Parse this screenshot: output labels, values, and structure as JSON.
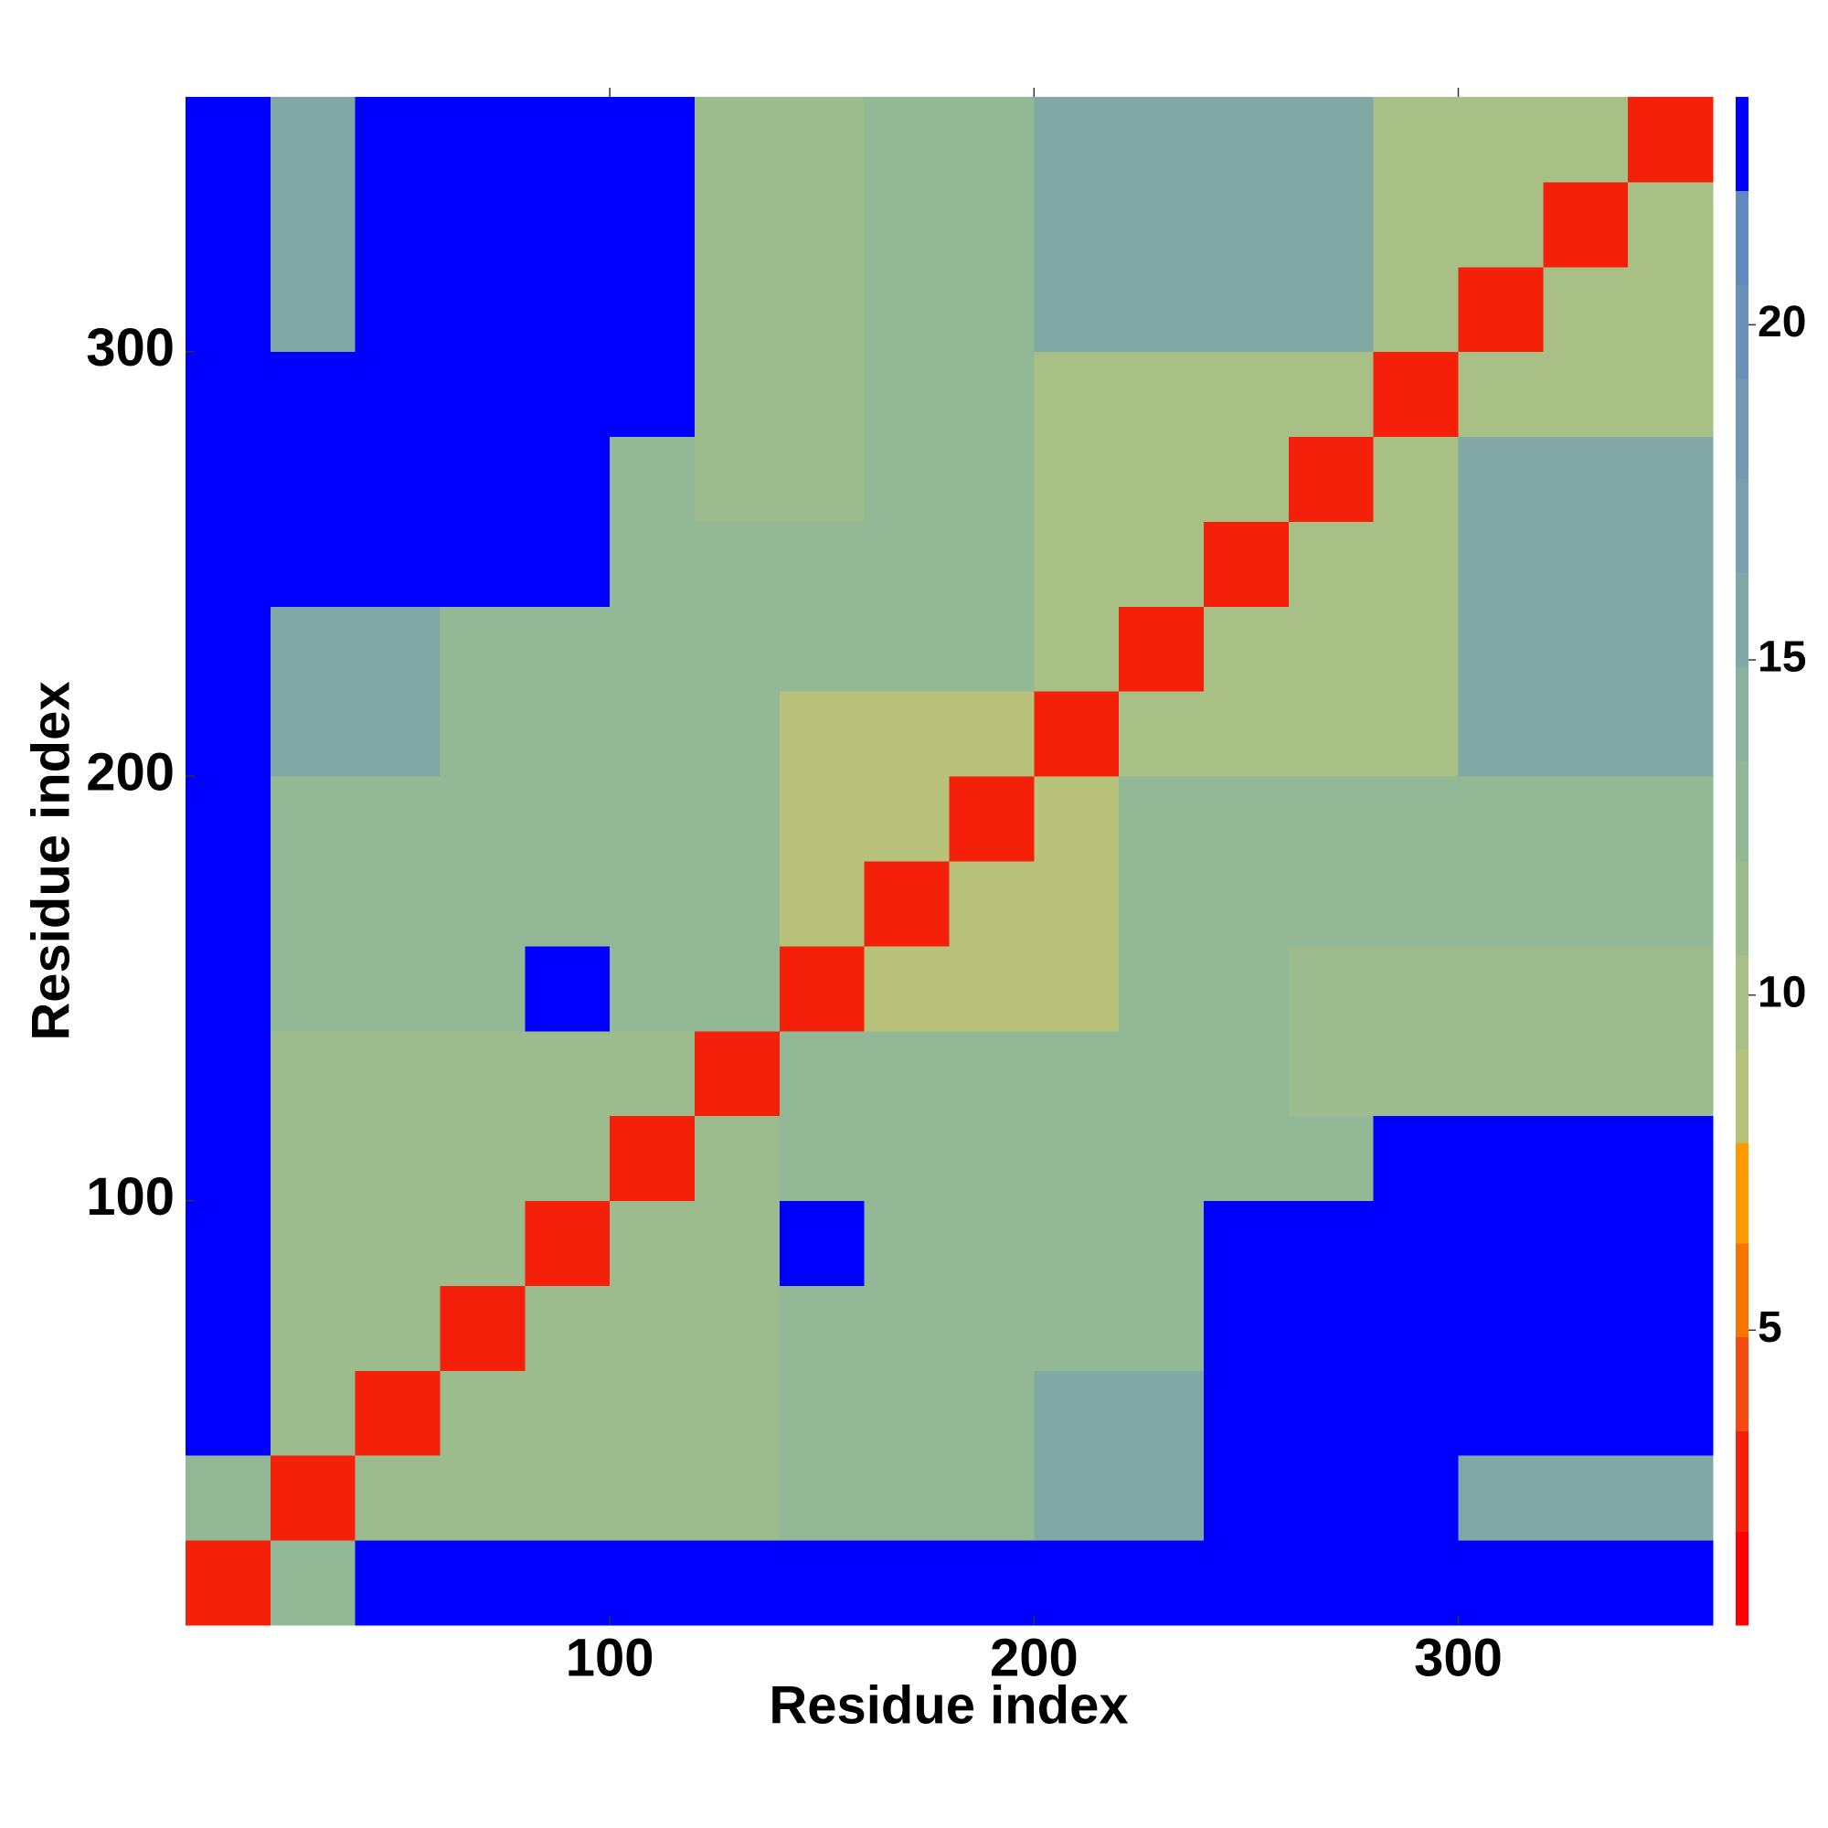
{
  "chart_data": {
    "type": "heatmap",
    "x_label": "Residue index",
    "y_label": "Residue index",
    "xlim": [
      0,
      360
    ],
    "ylim": [
      0,
      360
    ],
    "xticks": [
      100,
      200,
      300
    ],
    "yticks": [
      100,
      200,
      300
    ],
    "xbins": [
      0,
      20,
      40,
      60,
      80,
      100,
      120,
      140,
      160,
      180,
      200,
      220,
      240,
      260,
      280,
      300,
      320,
      340,
      360
    ],
    "ybins": [
      0,
      20,
      40,
      60,
      80,
      100,
      120,
      140,
      160,
      180,
      200,
      220,
      240,
      260,
      280,
      300,
      320,
      340,
      360
    ],
    "values": [
      [
        2,
        12,
        23,
        23,
        23,
        23,
        23,
        23,
        23,
        23,
        23,
        23,
        23,
        23,
        23,
        23,
        23,
        23
      ],
      [
        12,
        2,
        11,
        11,
        11,
        11,
        11,
        12,
        12,
        12,
        16,
        16,
        23,
        23,
        23,
        15,
        15,
        15
      ],
      [
        23,
        11,
        2,
        11,
        11,
        11,
        11,
        12,
        12,
        12,
        16,
        16,
        23,
        23,
        23,
        23,
        23,
        23
      ],
      [
        23,
        11,
        11,
        2,
        11,
        11,
        11,
        12,
        12,
        12,
        13,
        13,
        23,
        23,
        23,
        23,
        23,
        23
      ],
      [
        23,
        11,
        11,
        11,
        2,
        11,
        11,
        23,
        13,
        13,
        13,
        13,
        23,
        23,
        23,
        23,
        23,
        23
      ],
      [
        23,
        11,
        11,
        11,
        11,
        2,
        11,
        12,
        12,
        12,
        12,
        12,
        13,
        13,
        23,
        23,
        23,
        23
      ],
      [
        23,
        11,
        11,
        11,
        11,
        11,
        2,
        12,
        12,
        12,
        12,
        12,
        13,
        11,
        11,
        11,
        11,
        11
      ],
      [
        23,
        12,
        12,
        12,
        23,
        12,
        12,
        2,
        9,
        9,
        9,
        12,
        12,
        11,
        11,
        11,
        11,
        11
      ],
      [
        23,
        12,
        12,
        12,
        13,
        12,
        12,
        9,
        2,
        9,
        9,
        12,
        12,
        12,
        13,
        13,
        13,
        13
      ],
      [
        23,
        12,
        12,
        12,
        13,
        12,
        12,
        9,
        9,
        2,
        9,
        12,
        12,
        12,
        13,
        13,
        13,
        13
      ],
      [
        23,
        16,
        16,
        13,
        13,
        12,
        12,
        9,
        9,
        9,
        2,
        10,
        10,
        10,
        10,
        15,
        15,
        15
      ],
      [
        23,
        16,
        16,
        13,
        13,
        12,
        12,
        12,
        12,
        12,
        10,
        2,
        10,
        10,
        10,
        15,
        15,
        15
      ],
      [
        23,
        23,
        23,
        23,
        23,
        13,
        13,
        12,
        12,
        12,
        10,
        10,
        2,
        10,
        10,
        15,
        15,
        15
      ],
      [
        23,
        23,
        23,
        23,
        23,
        13,
        11,
        11,
        12,
        12,
        10,
        10,
        10,
        2,
        10,
        15,
        15,
        15
      ],
      [
        23,
        23,
        23,
        23,
        23,
        23,
        11,
        11,
        13,
        13,
        10,
        10,
        10,
        10,
        2,
        10,
        10,
        10
      ],
      [
        23,
        15,
        23,
        23,
        23,
        23,
        11,
        11,
        13,
        13,
        15,
        15,
        15,
        15,
        10,
        2,
        10,
        10
      ],
      [
        23,
        15,
        23,
        23,
        23,
        23,
        11,
        11,
        13,
        13,
        15,
        15,
        15,
        15,
        10,
        10,
        2,
        10
      ],
      [
        23,
        15,
        23,
        23,
        23,
        23,
        11,
        11,
        13,
        13,
        15,
        15,
        15,
        15,
        10,
        10,
        10,
        2
      ]
    ],
    "colorbar": {
      "lim": [
        0.6,
        23.4
      ],
      "levels": [
        0.6,
        2.0,
        3.5,
        4.9,
        6.3,
        7.8,
        9.2,
        10.6,
        12.0,
        13.5,
        14.9,
        16.3,
        17.7,
        19.2,
        20.6,
        22.0,
        23.4
      ],
      "colors": [
        "#ff0000",
        "#f5200a",
        "#f24a10",
        "#f87400",
        "#ff9a00",
        "#b8c27a",
        "#a8c086",
        "#9cbc8e",
        "#92b896",
        "#8ab09e",
        "#82a8a6",
        "#7aa0ae",
        "#7298b4",
        "#6a90ba",
        "#6288be",
        "#0000ff"
      ],
      "ticks": [
        5,
        10,
        15,
        20
      ]
    }
  }
}
